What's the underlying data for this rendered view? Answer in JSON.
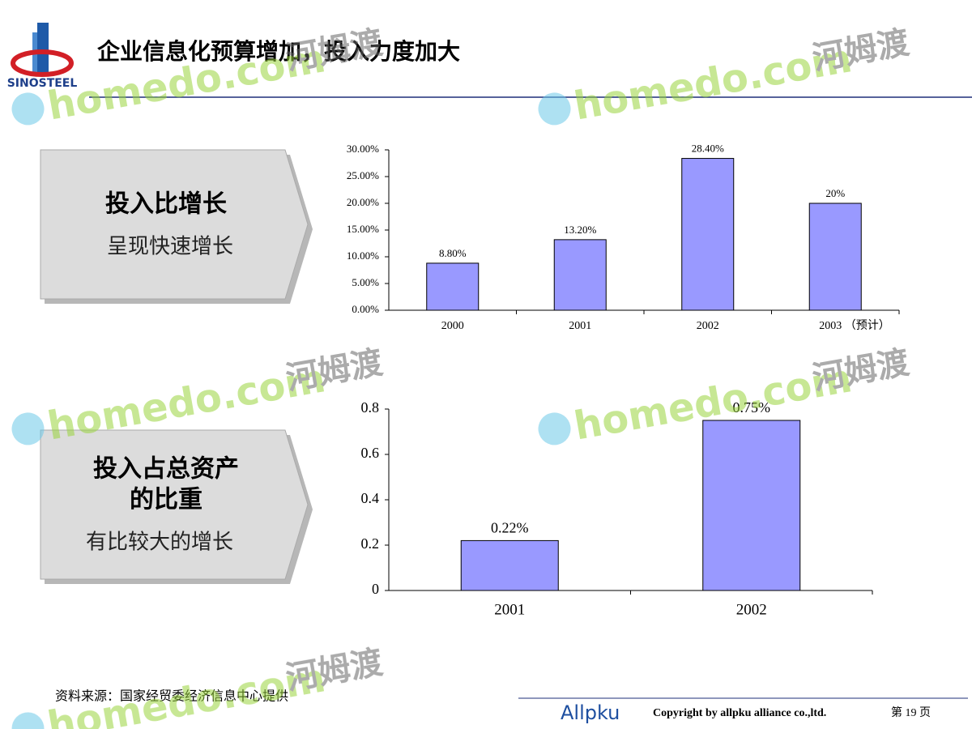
{
  "header": {
    "title": "企业信息化预算增加，投入力度加大",
    "logo": "SINOSTEEL"
  },
  "panels": [
    {
      "heading": [
        "投入比增长"
      ],
      "text": "呈现快速增长"
    },
    {
      "heading": [
        "投入占总资产",
        "的比重"
      ],
      "text": "有比较大的增长"
    }
  ],
  "chart_data": [
    {
      "type": "bar",
      "categories": [
        "2000",
        "2001",
        "2002",
        "2003 （预计）"
      ],
      "values": [
        8.8,
        13.2,
        28.4,
        20
      ],
      "value_labels": [
        "8.80%",
        "13.20%",
        "28.40%",
        "20%"
      ],
      "color": "#9999ff",
      "ylim": [
        0,
        30
      ],
      "yticks": [
        {
          "value": 0,
          "label": "0.00%"
        },
        {
          "value": 5,
          "label": "5.00%"
        },
        {
          "value": 10,
          "label": "10.00%"
        },
        {
          "value": 15,
          "label": "15.00%"
        },
        {
          "value": 20,
          "label": "20.00%"
        },
        {
          "value": 25,
          "label": "25.00%"
        },
        {
          "value": 30,
          "label": "30.00%"
        }
      ],
      "grid": false
    },
    {
      "type": "bar",
      "categories": [
        "2001",
        "2002"
      ],
      "values": [
        0.22,
        0.75
      ],
      "value_labels": [
        "0.22%",
        "0.75%"
      ],
      "color": "#9999ff",
      "ylim": [
        0,
        0.8
      ],
      "yticks": [
        0,
        0.2,
        0.4,
        0.6,
        0.8
      ],
      "grid": false
    }
  ],
  "footer": {
    "source": "资料来源：国家经贸委经济信息中心提供",
    "logo": "Allpku",
    "copyright": "Copyright by  allpku alliance co.,ltd.",
    "page": "第 19 页"
  },
  "watermark": {
    "site": "homedo.com",
    "name": "河姆渡"
  }
}
